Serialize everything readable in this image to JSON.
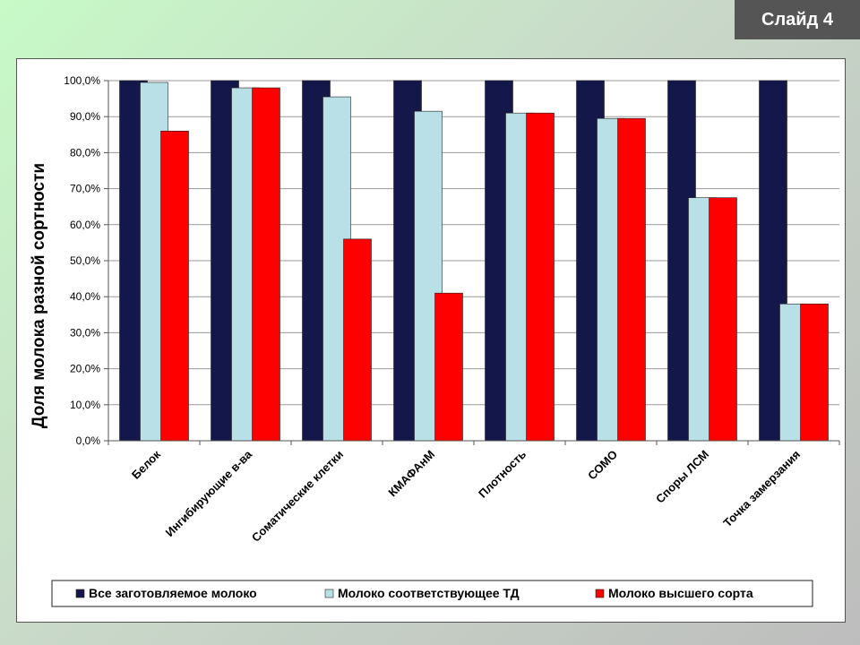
{
  "slide": {
    "label": "Слайд 4"
  },
  "colors": {
    "all_milk": "#14174a",
    "td_milk": "#b8e0e6",
    "premium_milk": "#ff0000"
  },
  "chart_data": {
    "type": "bar",
    "title": "",
    "xlabel": "",
    "ylabel": "Доля молока разной сортности",
    "ylim": [
      0,
      100
    ],
    "y_ticks": [
      "0,0%",
      "10,0%",
      "20,0%",
      "30,0%",
      "40,0%",
      "50,0%",
      "60,0%",
      "70,0%",
      "80,0%",
      "90,0%",
      "100,0%"
    ],
    "grid": true,
    "legend_position": "bottom",
    "categories": [
      "Белок",
      "Ингибирующие в-ва",
      "Соматические клетки",
      "КМАФАнМ",
      "Плотность",
      "СОМО",
      "Споры ЛСМ",
      "Точка замерзания"
    ],
    "series": [
      {
        "name": "Все заготовляемое молоко",
        "color": "#14174a",
        "values": [
          100,
          100,
          100,
          100,
          100,
          100,
          100,
          100
        ]
      },
      {
        "name": "Молоко соответствующее  ТД",
        "color": "#b8e0e6",
        "values": [
          99.5,
          98,
          95.5,
          91.5,
          91,
          89.5,
          67.5,
          38
        ]
      },
      {
        "name": "Молоко высшего сорта",
        "color": "#ff0000",
        "values": [
          86,
          98,
          56,
          41,
          91,
          89.5,
          67.5,
          38
        ]
      }
    ]
  }
}
